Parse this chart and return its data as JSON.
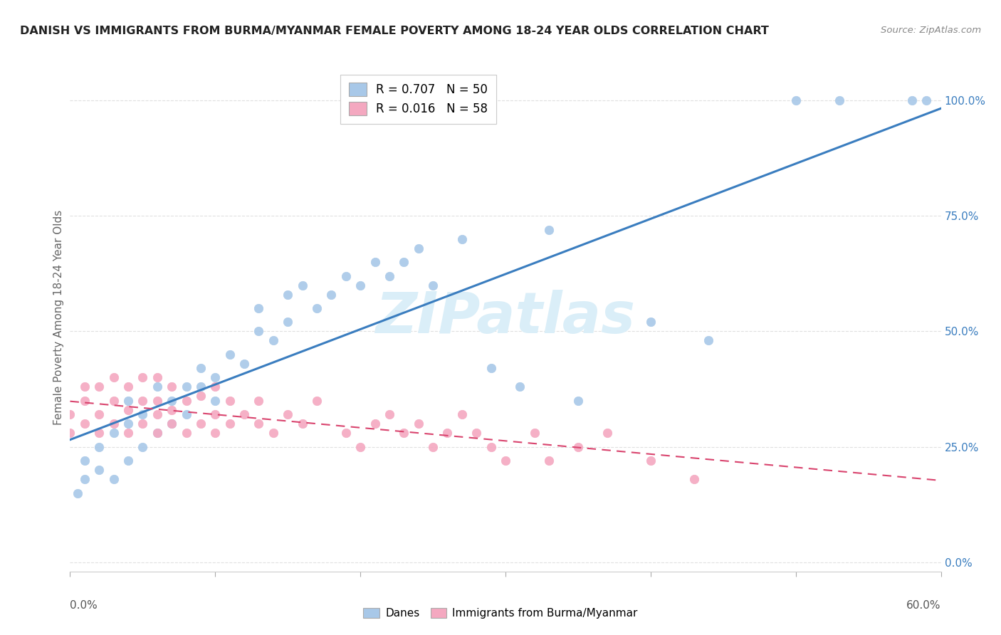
{
  "title": "DANISH VS IMMIGRANTS FROM BURMA/MYANMAR FEMALE POVERTY AMONG 18-24 YEAR OLDS CORRELATION CHART",
  "source": "Source: ZipAtlas.com",
  "ylabel": "Female Poverty Among 18-24 Year Olds",
  "xmin": 0.0,
  "xmax": 0.6,
  "ymin": -0.02,
  "ymax": 1.08,
  "legend_r1": "R = 0.707",
  "legend_n1": "N = 50",
  "legend_r2": "R = 0.016",
  "legend_n2": "N = 58",
  "blue_color": "#a8c8e8",
  "pink_color": "#f4a8c0",
  "blue_line_color": "#3a7dbf",
  "pink_line_color": "#d9446e",
  "watermark": "ZIPatlas",
  "watermark_color": "#daeef8",
  "blue_scatter_x": [
    0.005,
    0.01,
    0.01,
    0.02,
    0.02,
    0.03,
    0.03,
    0.04,
    0.04,
    0.04,
    0.05,
    0.05,
    0.06,
    0.06,
    0.07,
    0.07,
    0.08,
    0.08,
    0.09,
    0.09,
    0.1,
    0.1,
    0.11,
    0.12,
    0.13,
    0.13,
    0.14,
    0.15,
    0.15,
    0.16,
    0.17,
    0.18,
    0.19,
    0.2,
    0.21,
    0.22,
    0.23,
    0.24,
    0.25,
    0.27,
    0.29,
    0.31,
    0.33,
    0.35,
    0.4,
    0.44,
    0.5,
    0.53,
    0.58,
    0.59
  ],
  "blue_scatter_y": [
    0.15,
    0.18,
    0.22,
    0.2,
    0.25,
    0.18,
    0.28,
    0.22,
    0.3,
    0.35,
    0.25,
    0.32,
    0.28,
    0.38,
    0.3,
    0.35,
    0.32,
    0.38,
    0.38,
    0.42,
    0.35,
    0.4,
    0.45,
    0.43,
    0.5,
    0.55,
    0.48,
    0.52,
    0.58,
    0.6,
    0.55,
    0.58,
    0.62,
    0.6,
    0.65,
    0.62,
    0.65,
    0.68,
    0.6,
    0.7,
    0.42,
    0.38,
    0.72,
    0.35,
    0.52,
    0.48,
    1.0,
    1.0,
    1.0,
    1.0
  ],
  "pink_scatter_x": [
    0.0,
    0.0,
    0.01,
    0.01,
    0.01,
    0.02,
    0.02,
    0.02,
    0.03,
    0.03,
    0.03,
    0.04,
    0.04,
    0.04,
    0.05,
    0.05,
    0.05,
    0.06,
    0.06,
    0.06,
    0.06,
    0.07,
    0.07,
    0.07,
    0.08,
    0.08,
    0.09,
    0.09,
    0.1,
    0.1,
    0.1,
    0.11,
    0.11,
    0.12,
    0.13,
    0.13,
    0.14,
    0.15,
    0.16,
    0.17,
    0.19,
    0.2,
    0.21,
    0.22,
    0.23,
    0.24,
    0.25,
    0.26,
    0.27,
    0.28,
    0.29,
    0.3,
    0.32,
    0.33,
    0.35,
    0.37,
    0.4,
    0.43
  ],
  "pink_scatter_y": [
    0.28,
    0.32,
    0.3,
    0.35,
    0.38,
    0.28,
    0.32,
    0.38,
    0.3,
    0.35,
    0.4,
    0.28,
    0.33,
    0.38,
    0.3,
    0.35,
    0.4,
    0.28,
    0.32,
    0.35,
    0.4,
    0.3,
    0.33,
    0.38,
    0.28,
    0.35,
    0.3,
    0.36,
    0.28,
    0.32,
    0.38,
    0.3,
    0.35,
    0.32,
    0.3,
    0.35,
    0.28,
    0.32,
    0.3,
    0.35,
    0.28,
    0.25,
    0.3,
    0.32,
    0.28,
    0.3,
    0.25,
    0.28,
    0.32,
    0.28,
    0.25,
    0.22,
    0.28,
    0.22,
    0.25,
    0.28,
    0.22,
    0.18
  ]
}
